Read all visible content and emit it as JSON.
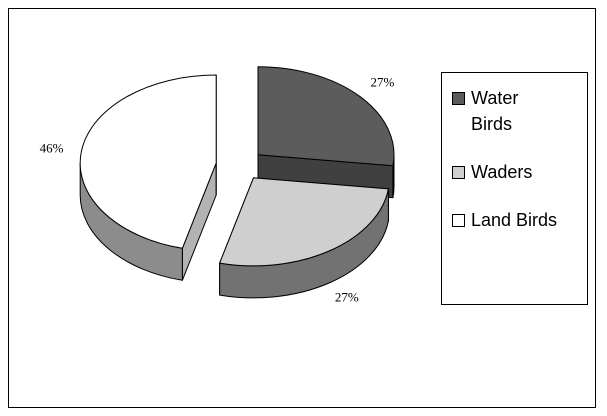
{
  "chart_data": {
    "type": "pie3d",
    "categories": [
      "Water Birds",
      "Waders",
      "Land Birds"
    ],
    "values": [
      27,
      27,
      46
    ],
    "value_labels": [
      "27%",
      "27%",
      "46%"
    ],
    "colors": [
      "#5c5c5c",
      "#cfcfcf",
      "#ffffff"
    ],
    "legend": "right"
  }
}
